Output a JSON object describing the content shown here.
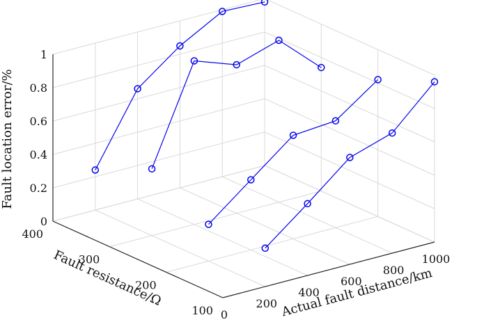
{
  "chart_data": {
    "type": "line",
    "projection": "3d",
    "xlabel": "Actual fault distance/km",
    "ylabel": "Fault resistance/Ω",
    "zlabel": "Fault location error/%",
    "xlim": [
      0,
      1000
    ],
    "ylim": [
      100,
      400
    ],
    "zlim": [
      0,
      1
    ],
    "xticks": [
      "0",
      "200",
      "400",
      "600",
      "800",
      "1000"
    ],
    "yticks": [
      "100",
      "200",
      "300",
      "400"
    ],
    "zticks": [
      "0",
      "0.2",
      "0.4",
      "0.6",
      "0.8",
      "1"
    ],
    "grid": true,
    "line_color": "#0000ee",
    "series": [
      {
        "y": 100,
        "x": [
          200,
          400,
          600,
          800,
          1000
        ],
        "z": [
          0.23,
          0.43,
          0.64,
          0.72,
          0.96
        ]
      },
      {
        "y": 200,
        "x": [
          200,
          400,
          600,
          800,
          1000
        ],
        "z": [
          0.22,
          0.42,
          0.62,
          0.64,
          0.82
        ]
      },
      {
        "y": 300,
        "x": [
          200,
          400,
          600,
          800,
          1000
        ],
        "z": [
          0.4,
          0.98,
          0.89,
          0.97,
          0.74
        ]
      },
      {
        "y": 400,
        "x": [
          200,
          400,
          600,
          800,
          1000
        ],
        "z": [
          0.24,
          0.66,
          0.85,
          0.99,
          0.98
        ]
      }
    ]
  }
}
